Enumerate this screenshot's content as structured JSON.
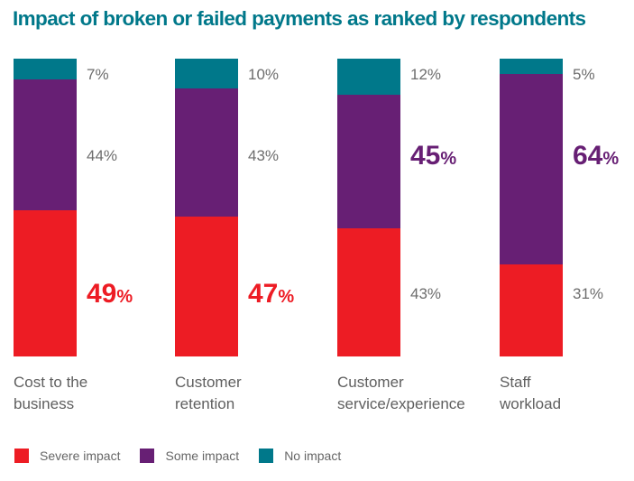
{
  "chart_data": {
    "type": "bar",
    "stacked": true,
    "title": "Impact of broken or failed payments as ranked by respondents",
    "categories": [
      [
        "Cost to the",
        "business"
      ],
      [
        "Customer",
        "retention"
      ],
      [
        "Customer",
        "service/experience"
      ],
      [
        "Staff",
        "workload"
      ]
    ],
    "series": [
      {
        "name": "Severe impact",
        "color": "#ed1c24",
        "values": [
          49,
          47,
          43,
          31
        ]
      },
      {
        "name": "Some impact",
        "color": "#671f74",
        "values": [
          44,
          43,
          45,
          64
        ]
      },
      {
        "name": "No impact",
        "color": "#00788a",
        "values": [
          7,
          10,
          12,
          5
        ]
      }
    ],
    "highlight": [
      0,
      0,
      1,
      1
    ],
    "ylim": [
      0,
      100
    ],
    "legend_position": "bottom-left",
    "grid": false
  }
}
